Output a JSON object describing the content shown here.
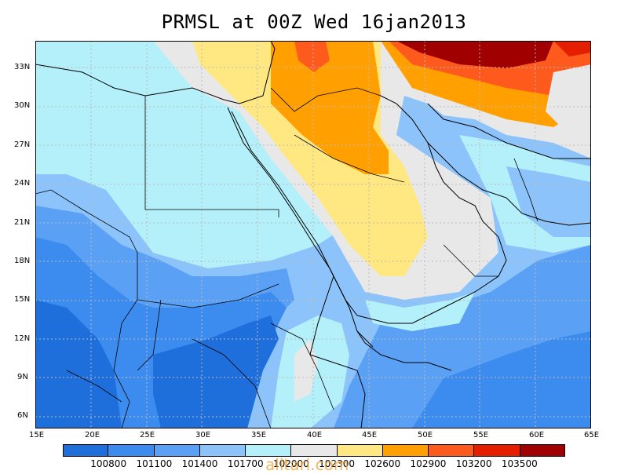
{
  "title": "PRMSL at 00Z Wed 16jan2013",
  "watermark": "alltari.com",
  "x_ticks": [
    "15E",
    "20E",
    "25E",
    "30E",
    "35E",
    "40E",
    "45E",
    "50E",
    "55E",
    "60E",
    "65E"
  ],
  "y_ticks": [
    "6N",
    "9N",
    "12N",
    "15N",
    "18N",
    "21N",
    "24N",
    "27N",
    "30N",
    "33N"
  ],
  "legend": {
    "labels": [
      "100800",
      "101100",
      "101400",
      "101700",
      "102000",
      "102300",
      "102600",
      "102900",
      "103200",
      "103500"
    ],
    "colors": [
      "#1e6edc",
      "#3c8cf0",
      "#5aa0f5",
      "#8cc3fa",
      "#b4f0fa",
      "#e8e8e8",
      "#ffe882",
      "#ffa000",
      "#ff5a1e",
      "#e61e00",
      "#a00000"
    ]
  },
  "map_colors": {
    "deep_blue": "#1e6edc",
    "blue": "#3c8cf0",
    "mid_blue": "#5aa0f5",
    "light_blue": "#8cc3fa",
    "cyan": "#b4f0fa",
    "gray": "#e8e8e8",
    "yellow": "#ffe882",
    "orange": "#ffa000",
    "red_orange": "#ff5a1e",
    "red": "#e61e00",
    "dark_red": "#a00000"
  }
}
